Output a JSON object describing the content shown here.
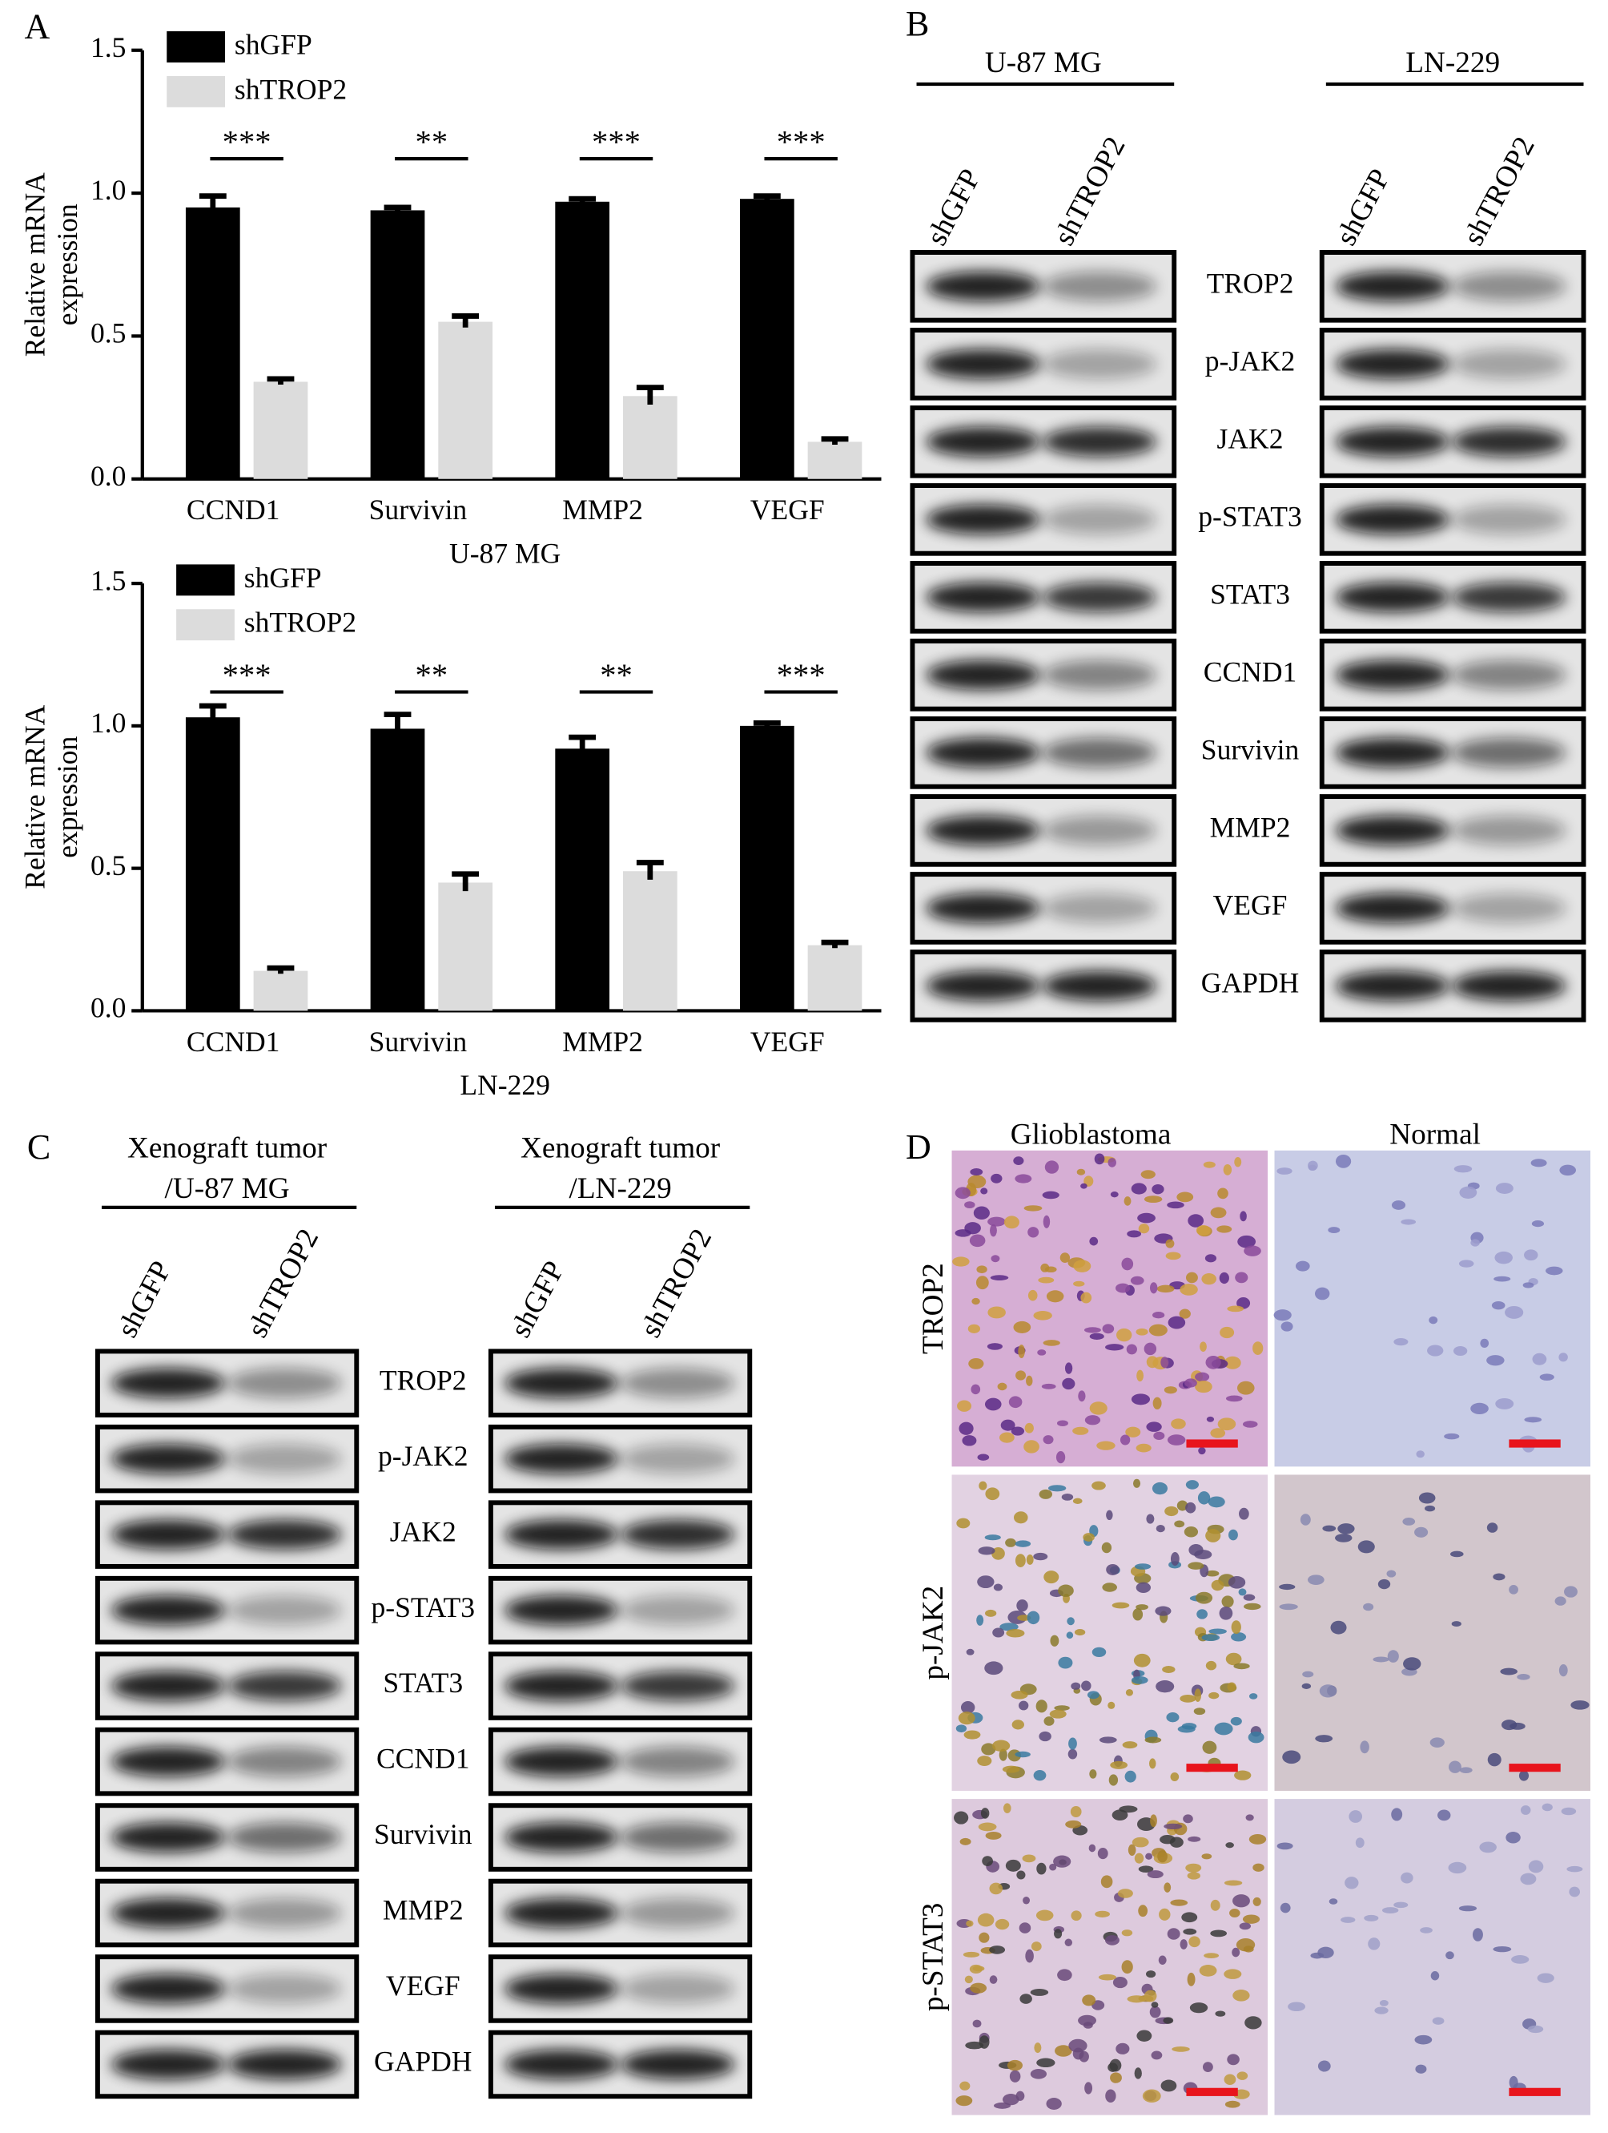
{
  "panel_labels": [
    "A",
    "B",
    "C",
    "D"
  ],
  "chart_data": [
    {
      "type": "bar",
      "xlabel": "U-87 MG",
      "ylabel": [
        "Relative mRNA",
        "expression"
      ],
      "categories": [
        "CCND1",
        "Survivin",
        "MMP2",
        "VEGF"
      ],
      "series": [
        {
          "name": "shGFP",
          "color": "#000000",
          "values": [
            0.95,
            0.94,
            0.97,
            0.98
          ],
          "errors": [
            0.04,
            0.01,
            0.01,
            0.01
          ]
        },
        {
          "name": "shTROP2",
          "color": "#dcdcdc",
          "values": [
            0.34,
            0.55,
            0.29,
            0.13
          ],
          "errors": [
            0.01,
            0.02,
            0.03,
            0.01
          ]
        }
      ],
      "significance": [
        "***",
        "**",
        "***",
        "***"
      ],
      "ylim": [
        0,
        1.5
      ],
      "yticks": [
        {
          "value": 0,
          "label": "0.0"
        },
        {
          "value": 0.5,
          "label": "0.5"
        },
        {
          "value": 1,
          "label": "1.0"
        },
        {
          "value": 1.5,
          "label": "1.5"
        }
      ]
    },
    {
      "type": "bar",
      "xlabel": "LN-229",
      "ylabel": [
        "Relative mRNA",
        "expression"
      ],
      "categories": [
        "CCND1",
        "Survivin",
        "MMP2",
        "VEGF"
      ],
      "series": [
        {
          "name": "shGFP",
          "color": "#000000",
          "values": [
            1.03,
            0.99,
            0.92,
            1.0
          ],
          "errors": [
            0.04,
            0.05,
            0.04,
            0.01
          ]
        },
        {
          "name": "shTROP2",
          "color": "#dcdcdc",
          "values": [
            0.14,
            0.45,
            0.49,
            0.23
          ],
          "errors": [
            0.01,
            0.03,
            0.03,
            0.01
          ]
        }
      ],
      "significance": [
        "***",
        "**",
        "**",
        "***"
      ],
      "ylim": [
        0,
        1.5
      ],
      "yticks": [
        {
          "value": 0,
          "label": "0.0"
        },
        {
          "value": 0.5,
          "label": "0.5"
        },
        {
          "value": 1,
          "label": "1.0"
        },
        {
          "value": 1.5,
          "label": "1.5"
        }
      ]
    }
  ],
  "blot_b": {
    "groups": [
      {
        "name": [
          "U-87 MG"
        ],
        "lanes": [
          "shGFP",
          "shTROP2"
        ]
      },
      {
        "name": [
          "LN-229"
        ],
        "lanes": [
          "shGFP",
          "shTROP2"
        ]
      }
    ],
    "proteins": [
      "TROP2",
      "p-JAK2",
      "JAK2",
      "p-STAT3",
      "STAT3",
      "CCND1",
      "Survivin",
      "MMP2",
      "VEGF",
      "GAPDH"
    ]
  },
  "blot_c": {
    "groups": [
      {
        "name": [
          "Xenograft tumor",
          "/U-87 MG"
        ],
        "lanes": [
          "shGFP",
          "shTROP2"
        ]
      },
      {
        "name": [
          "Xenograft tumor",
          "/LN-229"
        ],
        "lanes": [
          "shGFP",
          "shTROP2"
        ]
      }
    ],
    "proteins": [
      "TROP2",
      "p-JAK2",
      "JAK2",
      "p-STAT3",
      "STAT3",
      "CCND1",
      "Survivin",
      "MMP2",
      "VEGF",
      "GAPDH"
    ]
  },
  "ihc": {
    "columns": [
      "Glioblastoma",
      "Normal"
    ],
    "rows": [
      "TROP2",
      "p-JAK2",
      "p-STAT3"
    ]
  }
}
